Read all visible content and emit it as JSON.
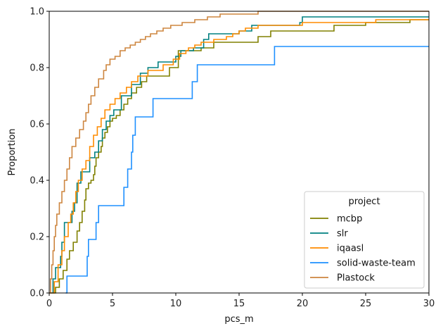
{
  "chart_data": {
    "type": "line",
    "step": "ecdf",
    "xlabel": "pcs_m",
    "ylabel": "Proportion",
    "xlim": [
      0,
      30
    ],
    "ylim": [
      0,
      1
    ],
    "x_ticks": [
      0,
      5,
      10,
      15,
      20,
      25,
      30
    ],
    "y_ticks": [
      0.0,
      0.2,
      0.4,
      0.6,
      0.8,
      1.0
    ],
    "x_tick_labels": [
      "0",
      "5",
      "10",
      "15",
      "20",
      "25",
      "30"
    ],
    "y_tick_labels": [
      "0.0",
      "0.2",
      "0.4",
      "0.6",
      "0.8",
      "1.0"
    ],
    "grid": false,
    "legend": {
      "title": "project",
      "position": "lower-right"
    },
    "series": [
      {
        "name": "mcbp",
        "color": "#808000",
        "points": [
          [
            0.3,
            0.0
          ],
          [
            0.5,
            0.02
          ],
          [
            0.8,
            0.05
          ],
          [
            1.1,
            0.08
          ],
          [
            1.4,
            0.12
          ],
          [
            1.6,
            0.15
          ],
          [
            1.9,
            0.18
          ],
          [
            2.2,
            0.22
          ],
          [
            2.4,
            0.25
          ],
          [
            2.6,
            0.29
          ],
          [
            2.8,
            0.33
          ],
          [
            2.9,
            0.37
          ],
          [
            3.1,
            0.39
          ],
          [
            3.3,
            0.4
          ],
          [
            3.5,
            0.42
          ],
          [
            3.6,
            0.45
          ],
          [
            3.7,
            0.48
          ],
          [
            3.9,
            0.5
          ],
          [
            4.1,
            0.52
          ],
          [
            4.2,
            0.55
          ],
          [
            4.4,
            0.57
          ],
          [
            4.6,
            0.59
          ],
          [
            4.8,
            0.61
          ],
          [
            5.0,
            0.62
          ],
          [
            5.3,
            0.63
          ],
          [
            5.6,
            0.65
          ],
          [
            5.9,
            0.67
          ],
          [
            6.2,
            0.69
          ],
          [
            6.5,
            0.71
          ],
          [
            6.9,
            0.73
          ],
          [
            7.3,
            0.75
          ],
          [
            7.7,
            0.77
          ],
          [
            9.5,
            0.8
          ],
          [
            10.2,
            0.86
          ],
          [
            12.0,
            0.87
          ],
          [
            13.0,
            0.89
          ],
          [
            16.5,
            0.91
          ],
          [
            17.5,
            0.93
          ],
          [
            22.5,
            0.95
          ],
          [
            25.0,
            0.96
          ],
          [
            28.5,
            0.97
          ],
          [
            30.0,
            0.97
          ]
        ]
      },
      {
        "name": "slr",
        "color": "#008080",
        "points": [
          [
            0.1,
            0.0
          ],
          [
            0.3,
            0.05
          ],
          [
            0.5,
            0.09
          ],
          [
            0.9,
            0.13
          ],
          [
            1.0,
            0.18
          ],
          [
            1.2,
            0.25
          ],
          [
            1.8,
            0.29
          ],
          [
            2.0,
            0.32
          ],
          [
            2.2,
            0.39
          ],
          [
            2.5,
            0.43
          ],
          [
            3.2,
            0.48
          ],
          [
            3.6,
            0.5
          ],
          [
            3.9,
            0.54
          ],
          [
            4.2,
            0.58
          ],
          [
            4.5,
            0.61
          ],
          [
            4.8,
            0.63
          ],
          [
            5.1,
            0.65
          ],
          [
            5.7,
            0.7
          ],
          [
            6.5,
            0.74
          ],
          [
            7.2,
            0.78
          ],
          [
            7.8,
            0.8
          ],
          [
            8.6,
            0.82
          ],
          [
            10.0,
            0.84
          ],
          [
            10.4,
            0.86
          ],
          [
            11.4,
            0.87
          ],
          [
            12.2,
            0.9
          ],
          [
            12.6,
            0.92
          ],
          [
            15.0,
            0.93
          ],
          [
            16.0,
            0.95
          ],
          [
            19.8,
            0.96
          ],
          [
            20.0,
            0.98
          ],
          [
            30.0,
            0.98
          ]
        ]
      },
      {
        "name": "iqaasl",
        "color": "#ff8c00",
        "points": [
          [
            0.0,
            0.0
          ],
          [
            0.4,
            0.04
          ],
          [
            0.7,
            0.1
          ],
          [
            1.0,
            0.15
          ],
          [
            1.2,
            0.2
          ],
          [
            1.5,
            0.25
          ],
          [
            1.7,
            0.28
          ],
          [
            1.9,
            0.32
          ],
          [
            2.1,
            0.36
          ],
          [
            2.3,
            0.4
          ],
          [
            2.6,
            0.44
          ],
          [
            2.9,
            0.47
          ],
          [
            3.2,
            0.52
          ],
          [
            3.5,
            0.56
          ],
          [
            3.8,
            0.59
          ],
          [
            4.1,
            0.62
          ],
          [
            4.4,
            0.65
          ],
          [
            4.8,
            0.67
          ],
          [
            5.2,
            0.69
          ],
          [
            5.6,
            0.71
          ],
          [
            6.1,
            0.73
          ],
          [
            6.5,
            0.75
          ],
          [
            7.0,
            0.77
          ],
          [
            7.8,
            0.79
          ],
          [
            9.0,
            0.81
          ],
          [
            9.8,
            0.83
          ],
          [
            10.3,
            0.85
          ],
          [
            10.8,
            0.86
          ],
          [
            11.0,
            0.87
          ],
          [
            11.5,
            0.88
          ],
          [
            12.0,
            0.89
          ],
          [
            13.0,
            0.9
          ],
          [
            14.0,
            0.91
          ],
          [
            14.5,
            0.92
          ],
          [
            15.0,
            0.93
          ],
          [
            15.5,
            0.94
          ],
          [
            16.5,
            0.95
          ],
          [
            20.0,
            0.96
          ],
          [
            25.8,
            0.97
          ],
          [
            30.0,
            0.97
          ]
        ]
      },
      {
        "name": "solid-waste-team",
        "color": "#1e90ff",
        "points": [
          [
            1.3,
            0.0
          ],
          [
            1.4,
            0.06
          ],
          [
            3.0,
            0.13
          ],
          [
            3.1,
            0.19
          ],
          [
            3.7,
            0.25
          ],
          [
            3.9,
            0.31
          ],
          [
            5.9,
            0.375
          ],
          [
            6.2,
            0.44
          ],
          [
            6.5,
            0.5
          ],
          [
            6.6,
            0.56
          ],
          [
            6.8,
            0.625
          ],
          [
            8.2,
            0.69
          ],
          [
            11.3,
            0.75
          ],
          [
            11.7,
            0.81
          ],
          [
            17.8,
            0.875
          ],
          [
            30.0,
            0.875
          ]
        ]
      },
      {
        "name": "Plastock",
        "color": "#cd853f",
        "points": [
          [
            0.05,
            0.0
          ],
          [
            0.1,
            0.05
          ],
          [
            0.2,
            0.1
          ],
          [
            0.3,
            0.15
          ],
          [
            0.4,
            0.2
          ],
          [
            0.5,
            0.24
          ],
          [
            0.6,
            0.28
          ],
          [
            0.8,
            0.32
          ],
          [
            1.0,
            0.36
          ],
          [
            1.2,
            0.4
          ],
          [
            1.4,
            0.44
          ],
          [
            1.6,
            0.48
          ],
          [
            1.8,
            0.52
          ],
          [
            2.1,
            0.55
          ],
          [
            2.4,
            0.58
          ],
          [
            2.7,
            0.61
          ],
          [
            2.9,
            0.64
          ],
          [
            3.1,
            0.67
          ],
          [
            3.3,
            0.7
          ],
          [
            3.6,
            0.73
          ],
          [
            3.9,
            0.76
          ],
          [
            4.3,
            0.79
          ],
          [
            4.5,
            0.81
          ],
          [
            4.8,
            0.83
          ],
          [
            5.2,
            0.84
          ],
          [
            5.6,
            0.86
          ],
          [
            6.0,
            0.87
          ],
          [
            6.4,
            0.88
          ],
          [
            6.8,
            0.89
          ],
          [
            7.2,
            0.9
          ],
          [
            7.6,
            0.91
          ],
          [
            8.0,
            0.92
          ],
          [
            8.5,
            0.93
          ],
          [
            9.0,
            0.94
          ],
          [
            9.6,
            0.95
          ],
          [
            10.5,
            0.96
          ],
          [
            11.5,
            0.97
          ],
          [
            12.5,
            0.98
          ],
          [
            13.5,
            0.99
          ],
          [
            16.5,
            1.0
          ]
        ]
      }
    ]
  }
}
